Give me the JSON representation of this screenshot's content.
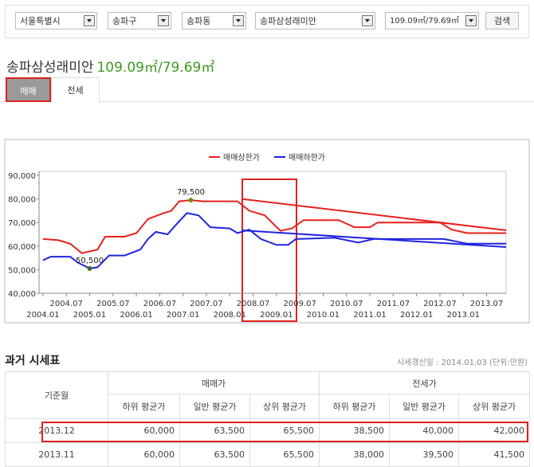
{
  "filters": [
    "서울특별시",
    "송파구",
    "송파동",
    "송파삼성래미안",
    "109.09㎡/79.69㎡"
  ],
  "search_button": "검색",
  "heading": {
    "name": "송파삼성래미안",
    "area": "109.09㎡/79.69㎡"
  },
  "tabs": [
    "매매",
    "전세"
  ],
  "chart_data": {
    "type": "line",
    "xlim": [
      "2003.12",
      "2013.12"
    ],
    "xticks": [
      "2004.01",
      "2004.07",
      "2005.01",
      "2005.07",
      "2006.01",
      "2006.07",
      "2007.01",
      "2007.07",
      "2008.01",
      "2008.07",
      "2009.01",
      "2009.07",
      "2010.01",
      "2010.07",
      "2011.01",
      "2011.07",
      "2012.01",
      "2012.07",
      "2013.01",
      "2013.07"
    ],
    "ylim": [
      40000,
      90000
    ],
    "yticks": [
      {
        "value": 40000,
        "label": "40,000"
      },
      {
        "value": 50000,
        "label": "50,000"
      },
      {
        "value": 60000,
        "label": "60,000"
      },
      {
        "value": 70000,
        "label": "70,000"
      },
      {
        "value": 80000,
        "label": "80,000"
      },
      {
        "value": 90000,
        "label": "90,000"
      }
    ],
    "grid": false,
    "legend": "top",
    "series": [
      {
        "name": "매매상한가",
        "color": "#e8201c",
        "x": [
          "2004.01",
          "2004.05",
          "2004.08",
          "2004.11",
          "2005.03",
          "2005.05",
          "2005.10",
          "2006.01",
          "2006.04",
          "2006.08",
          "2006.10",
          "2006.12",
          "2007.03",
          "2007.06",
          "2008.03",
          "2008.06",
          "2008.10",
          "2009.02",
          "2009.05",
          "2009.08",
          "2010.05",
          "2010.09",
          "2011.01",
          "2011.03",
          "2012.07",
          "2012.10",
          "2013.02",
          "2013.12"
        ],
        "values": [
          63000,
          62500,
          61000,
          57000,
          58500,
          64000,
          64000,
          65500,
          71500,
          74000,
          75000,
          79000,
          79500,
          79000,
          79000,
          75000,
          73000,
          66500,
          67500,
          71000,
          71000,
          68000,
          68000,
          70000,
          70000,
          67000,
          65500,
          65500
        ]
      },
      {
        "name": "매매하한가",
        "color": "#1f24e0",
        "x": [
          "2004.01",
          "2004.03",
          "2004.08",
          "2004.10",
          "2005.01",
          "2005.03",
          "2005.06",
          "2005.10",
          "2006.02",
          "2006.04",
          "2006.06",
          "2006.09",
          "2006.12",
          "2007.02",
          "2007.05",
          "2007.08",
          "2008.01",
          "2008.03",
          "2008.06",
          "2008.09",
          "2009.01",
          "2009.04",
          "2009.06",
          "2010.04",
          "2010.10",
          "2011.02",
          "2012.08",
          "2013.02",
          "2013.12"
        ],
        "values": [
          54000,
          55500,
          55500,
          53000,
          50500,
          51000,
          56000,
          56000,
          58500,
          63000,
          66000,
          65000,
          70500,
          74000,
          73000,
          68000,
          67500,
          65500,
          67000,
          63000,
          60500,
          60500,
          63000,
          63500,
          61500,
          63000,
          63000,
          61000,
          61000
        ]
      }
    ],
    "trend_lines": [
      {
        "color": "#e8201c",
        "x": [
          "2008.04",
          "2013.12"
        ],
        "values": [
          80000,
          66700
        ]
      },
      {
        "color": "#1f24e0",
        "x": [
          "2008.04",
          "2013.12"
        ],
        "values": [
          66700,
          59600
        ]
      }
    ],
    "annotations": [
      {
        "x": "2007.03",
        "value": 79500,
        "label": "79,500",
        "color": "#7a8a1a"
      },
      {
        "x": "2005.01",
        "value": 50500,
        "label": "50,500",
        "color": "#3d6b2a"
      }
    ]
  },
  "table": {
    "title": "과거 시세표",
    "note": "시세갱신일 : 2014.01.03 (단위:만원)",
    "header": {
      "month": "기준월",
      "groups": [
        "매매가",
        "전세가"
      ],
      "columns": [
        "하위 평균가",
        "일반 평균가",
        "상위 평균가",
        "하위 평균가",
        "일반 평균가",
        "상위 평균가"
      ]
    },
    "rows": [
      [
        "2013.12",
        "60,000",
        "63,500",
        "65,500",
        "38,500",
        "40,000",
        "42,000"
      ],
      [
        "2013.11",
        "60,000",
        "63,500",
        "65,500",
        "38,000",
        "39,500",
        "41,500"
      ]
    ]
  }
}
